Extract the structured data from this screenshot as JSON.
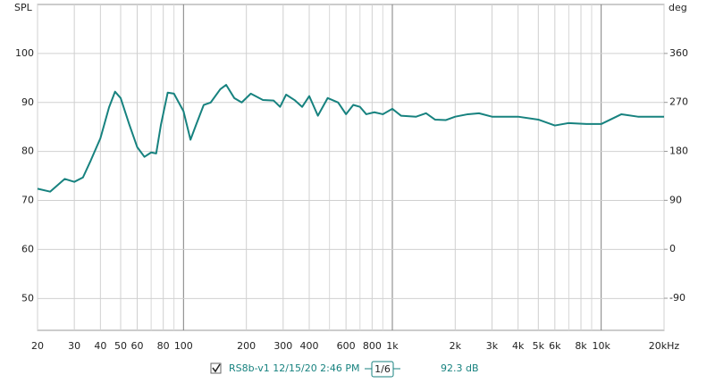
{
  "chart_data": {
    "type": "line",
    "y_label": "SPL",
    "y2_label": "deg",
    "xscale": "log",
    "grid": true,
    "xlim": [
      20,
      20000
    ],
    "xticks": [
      20,
      30,
      40,
      50,
      60,
      80,
      100,
      200,
      300,
      400,
      600,
      800,
      {
        "value": 1000,
        "label": "1k"
      },
      {
        "value": 2000,
        "label": "2k"
      },
      {
        "value": 3000,
        "label": "3k"
      },
      {
        "value": 4000,
        "label": "4k"
      },
      {
        "value": 5000,
        "label": "5k"
      },
      {
        "value": 6000,
        "label": "6k"
      },
      {
        "value": 8000,
        "label": "8k"
      },
      {
        "value": 10000,
        "label": "10k"
      },
      {
        "value": 20000,
        "label": "20kHz"
      }
    ],
    "x_minor_grid": [
      70,
      90,
      500,
      700,
      900,
      7000,
      9000
    ],
    "ylim": [
      43.5,
      110
    ],
    "yticks": [
      50,
      60,
      70,
      80,
      90,
      100
    ],
    "y2lim": [
      -149,
      450
    ],
    "y2ticks": [
      -90,
      0,
      90,
      180,
      270,
      360
    ],
    "x": [
      20,
      23,
      27,
      30,
      33,
      36,
      40,
      44,
      47,
      50,
      55,
      60,
      65,
      70,
      74,
      78,
      84,
      90,
      100,
      108,
      115,
      125,
      135,
      150,
      160,
      175,
      190,
      210,
      240,
      270,
      290,
      310,
      340,
      370,
      400,
      440,
      490,
      550,
      600,
      650,
      700,
      750,
      820,
      900,
      1000,
      1100,
      1300,
      1450,
      1600,
      1800,
      2000,
      2300,
      2600,
      3000,
      4000,
      5000,
      6000,
      7000,
      8500,
      10000,
      12500,
      15000,
      20000
    ],
    "series": [
      {
        "name": "RS8b-v1 12/15/20 2:46 PM",
        "color": "#17827f",
        "values": [
          72.4,
          71.8,
          74.4,
          73.8,
          74.7,
          78.2,
          82.7,
          89,
          92.2,
          90.9,
          85.5,
          80.9,
          78.9,
          79.8,
          79.6,
          85.5,
          92,
          91.8,
          88.2,
          82.4,
          85.5,
          89.5,
          90,
          92.7,
          93.6,
          90.9,
          90,
          91.8,
          90.5,
          90.4,
          89.1,
          91.6,
          90.5,
          89.1,
          91.3,
          87.3,
          90.9,
          90,
          87.6,
          89.5,
          89.1,
          87.6,
          88,
          87.6,
          88.7,
          87.3,
          87.1,
          87.8,
          86.5,
          86.4,
          87.1,
          87.6,
          87.8,
          87.1,
          87.1,
          86.5,
          85.3,
          85.8,
          85.6,
          85.6,
          87.6,
          87.1,
          87.1
        ]
      }
    ],
    "smoothing": "1/6",
    "level": "92.3 dB"
  }
}
